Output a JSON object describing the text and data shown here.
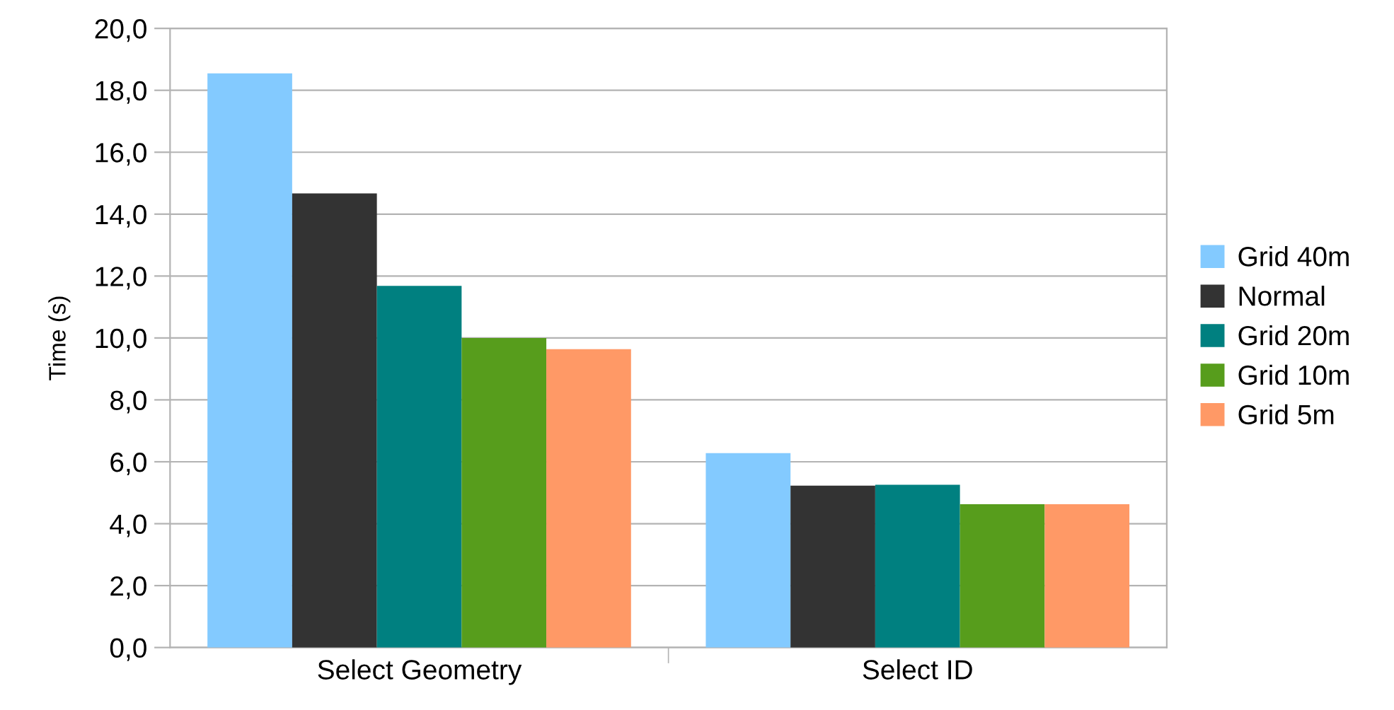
{
  "chart_data": {
    "type": "bar",
    "ylabel": "Time (s)",
    "categories": [
      "Select Geometry",
      "Select ID"
    ],
    "series": [
      {
        "name": "Grid 40m",
        "color": "#83caff",
        "values": [
          18.55,
          6.28
        ]
      },
      {
        "name": "Normal",
        "color": "#333333",
        "values": [
          14.67,
          5.23
        ]
      },
      {
        "name": "Grid 20m",
        "color": "#008080",
        "values": [
          11.68,
          5.26
        ]
      },
      {
        "name": "Grid 10m",
        "color": "#579d1c",
        "values": [
          10.0,
          4.63
        ]
      },
      {
        "name": "Grid 5m",
        "color": "#ff9966",
        "values": [
          9.64,
          4.63
        ]
      }
    ],
    "ylim": [
      0,
      20
    ],
    "yticks": [
      {
        "value": 0,
        "label": "0,0"
      },
      {
        "value": 2,
        "label": "2,0"
      },
      {
        "value": 4,
        "label": "4,0"
      },
      {
        "value": 6,
        "label": "6,0"
      },
      {
        "value": 8,
        "label": "8,0"
      },
      {
        "value": 10,
        "label": "10,0"
      },
      {
        "value": 12,
        "label": "12,0"
      },
      {
        "value": 14,
        "label": "14,0"
      },
      {
        "value": 16,
        "label": "16,0"
      },
      {
        "value": 18,
        "label": "18,0"
      },
      {
        "value": 20,
        "label": "20,0"
      }
    ],
    "grid": "y",
    "legend": "right"
  }
}
